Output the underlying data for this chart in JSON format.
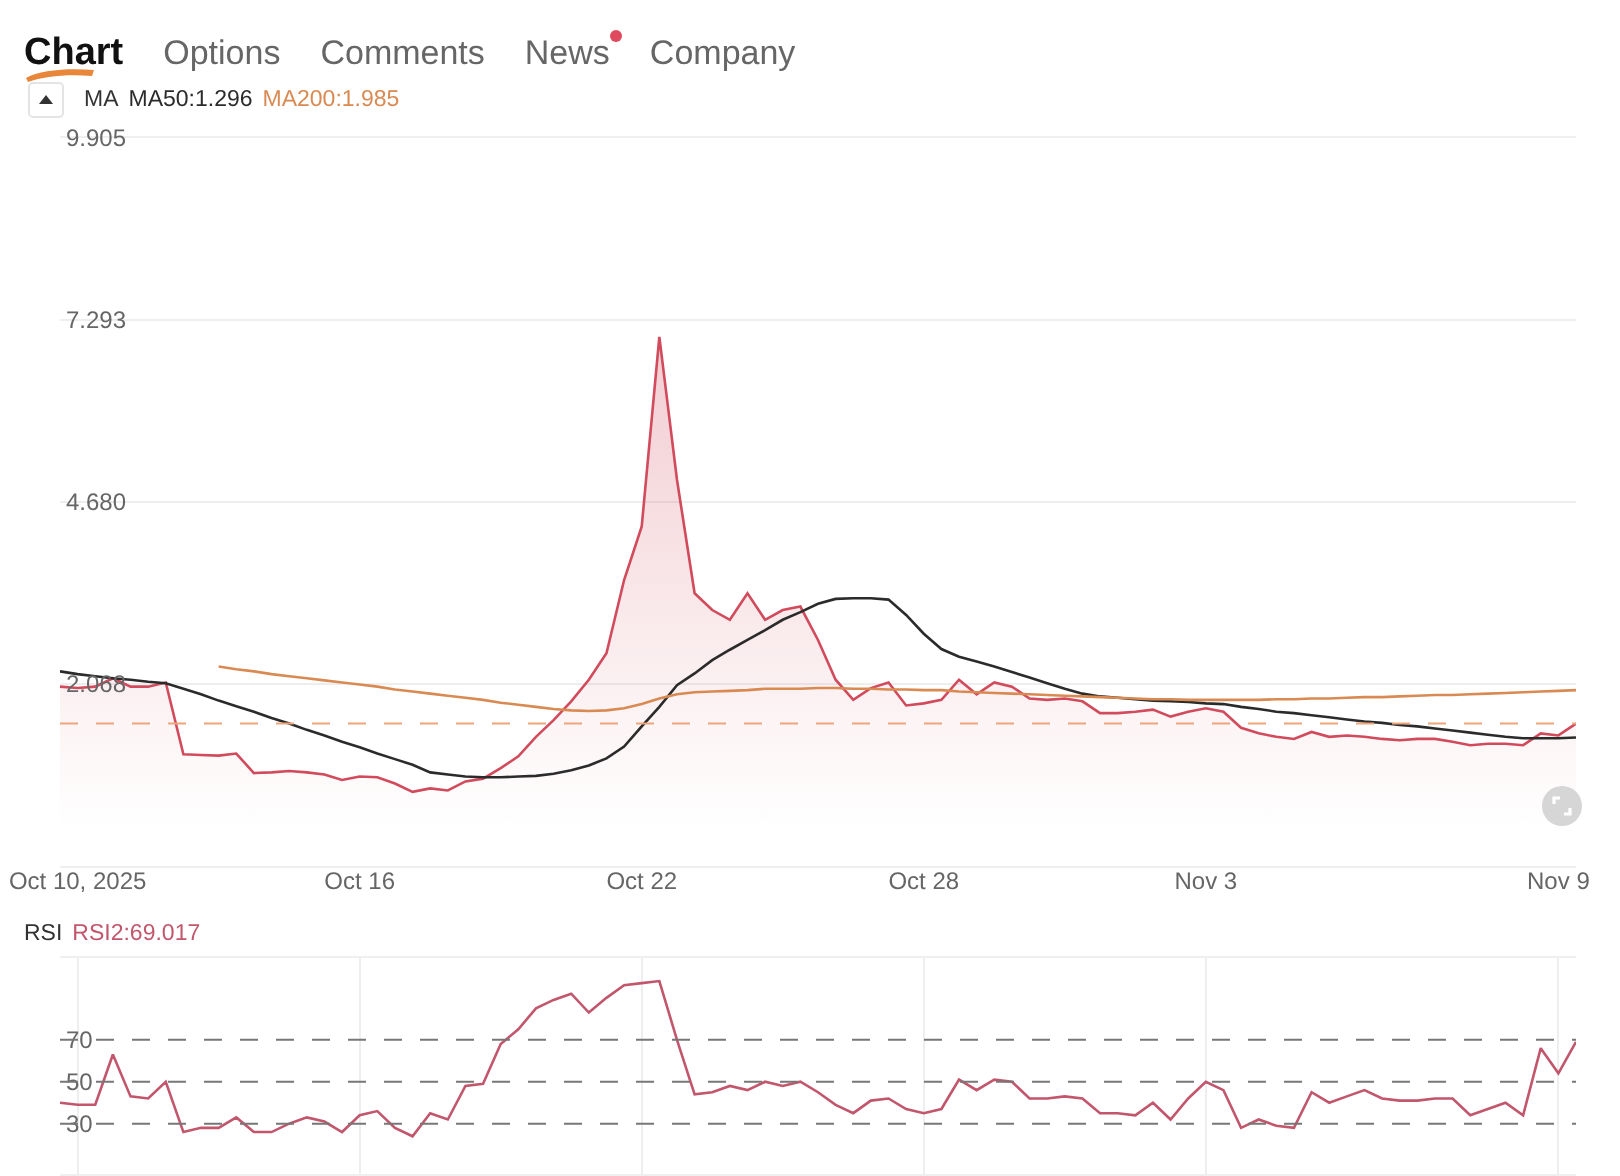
{
  "chart_data": [
    {
      "type": "line",
      "annotations": [
        "Chart",
        "Options",
        "Comments",
        "News",
        "Company"
      ],
      "legend_title": "MA",
      "legend": "top left",
      "categories": [
        null,
        "Oct 10, 2025",
        null,
        null,
        null,
        null,
        null,
        null,
        null,
        null,
        null,
        null,
        null,
        null,
        null,
        null,
        null,
        "Oct 16",
        null,
        null,
        null,
        null,
        null,
        null,
        null,
        null,
        null,
        null,
        null,
        null,
        null,
        null,
        null,
        "Oct 22",
        null,
        null,
        null,
        null,
        null,
        null,
        null,
        null,
        null,
        null,
        null,
        null,
        null,
        null,
        null,
        "Oct 28",
        null,
        null,
        null,
        null,
        null,
        null,
        null,
        null,
        null,
        null,
        null,
        null,
        null,
        null,
        null,
        "Nov 3",
        null,
        null,
        null,
        null,
        null,
        null,
        null,
        null,
        null,
        null,
        null,
        null,
        null,
        null,
        null,
        null,
        null,
        null,
        null,
        "Nov 9",
        null
      ],
      "series": [
        {
          "type": "area",
          "color": "#d14b5c",
          "values": [
            2.03,
            2.01,
            2.03,
            2.15,
            2.03,
            2.03,
            2.09,
            1.06,
            1.05,
            1.04,
            1.07,
            0.79,
            0.8,
            0.82,
            0.8,
            0.77,
            0.69,
            0.74,
            0.73,
            0.64,
            0.52,
            0.57,
            0.54,
            0.67,
            0.71,
            0.86,
            1.03,
            1.31,
            1.55,
            1.82,
            2.13,
            2.51,
            3.56,
            4.33,
            7.05,
            5.0,
            3.37,
            3.13,
            2.99,
            3.37,
            2.99,
            3.13,
            3.18,
            2.7,
            2.13,
            1.84,
            2.01,
            2.09,
            1.76,
            1.79,
            1.84,
            2.13,
            1.92,
            2.09,
            2.03,
            1.86,
            1.84,
            1.86,
            1.82,
            1.65,
            1.65,
            1.67,
            1.7,
            1.6,
            1.67,
            1.72,
            1.67,
            1.44,
            1.36,
            1.31,
            1.28,
            1.38,
            1.31,
            1.33,
            1.31,
            1.28,
            1.26,
            1.28,
            1.28,
            1.24,
            1.19,
            1.21,
            1.21,
            1.19,
            1.36,
            1.33,
            1.5
          ]
        },
        {
          "name": "MA50:1.296",
          "color": "#2b2b2b",
          "values": [
            2.25,
            2.21,
            2.18,
            2.15,
            2.13,
            2.1,
            2.08,
            2.0,
            1.92,
            1.83,
            1.75,
            1.67,
            1.58,
            1.5,
            1.41,
            1.33,
            1.24,
            1.16,
            1.07,
            0.99,
            0.91,
            0.8,
            0.77,
            0.74,
            0.73,
            0.73,
            0.74,
            0.75,
            0.78,
            0.83,
            0.9,
            1.0,
            1.17,
            1.46,
            1.74,
            2.05,
            2.22,
            2.41,
            2.56,
            2.7,
            2.84,
            2.99,
            3.1,
            3.22,
            3.29,
            3.3,
            3.3,
            3.28,
            3.06,
            2.79,
            2.57,
            2.46,
            2.39,
            2.32,
            2.24,
            2.16,
            2.08,
            2.0,
            1.93,
            1.89,
            1.87,
            1.85,
            1.83,
            1.82,
            1.81,
            1.79,
            1.78,
            1.74,
            1.71,
            1.67,
            1.65,
            1.62,
            1.59,
            1.56,
            1.53,
            1.51,
            1.48,
            1.46,
            1.43,
            1.4,
            1.37,
            1.34,
            1.31,
            1.29,
            1.29,
            1.29,
            1.3
          ]
        },
        {
          "name": "MA200:1.985",
          "color": "#d98a52",
          "values": [
            null,
            null,
            null,
            null,
            null,
            null,
            null,
            null,
            null,
            2.32,
            2.28,
            2.25,
            2.21,
            2.18,
            2.15,
            2.12,
            2.09,
            2.06,
            2.03,
            1.99,
            1.96,
            1.93,
            1.9,
            1.87,
            1.84,
            1.8,
            1.77,
            1.74,
            1.71,
            1.69,
            1.68,
            1.69,
            1.72,
            1.78,
            1.86,
            1.92,
            1.95,
            1.96,
            1.97,
            1.98,
            2.0,
            2.0,
            2.0,
            2.01,
            2.01,
            2.0,
            2.0,
            1.99,
            1.99,
            1.98,
            1.98,
            1.96,
            1.95,
            1.94,
            1.93,
            1.92,
            1.91,
            1.9,
            1.89,
            1.88,
            1.87,
            1.86,
            1.85,
            1.85,
            1.84,
            1.84,
            1.84,
            1.84,
            1.84,
            1.85,
            1.85,
            1.86,
            1.86,
            1.87,
            1.88,
            1.88,
            1.89,
            1.9,
            1.91,
            1.91,
            1.92,
            1.93,
            1.94,
            1.95,
            1.96,
            1.97,
            1.98
          ]
        }
      ],
      "ylim": [
        -0.544,
        9.905
      ],
      "yticks": [
        2.068,
        {
          "value": 4.68,
          "label": "4.680"
        },
        7.293,
        9.905
      ],
      "grid": "y",
      "ref_lines": [
        {
          "axis": "y",
          "value": 1.5,
          "color": "#eda57c",
          "line_style": "dashed"
        }
      ]
    },
    {
      "type": "line",
      "legend_title": "RSI",
      "legend": "top left",
      "categories": [
        null,
        null,
        null,
        null,
        null,
        null,
        null,
        null,
        null,
        null,
        null,
        null,
        null,
        null,
        null,
        null,
        null,
        null,
        null,
        null,
        null,
        null,
        null,
        null,
        null,
        null,
        null,
        null,
        null,
        null,
        null,
        null,
        null,
        null,
        null,
        null,
        null,
        null,
        null,
        null,
        null,
        null,
        null,
        null,
        null,
        null,
        null,
        null,
        null,
        null,
        null,
        null,
        null,
        null,
        null,
        null,
        null,
        null,
        null,
        null,
        null,
        null,
        null,
        null,
        null,
        null,
        null,
        null,
        null,
        null,
        null,
        null,
        null,
        null,
        null,
        null,
        null,
        null,
        null,
        null,
        null,
        null,
        null,
        null,
        null,
        null,
        null
      ],
      "series": [
        {
          "name": "RSI2:69.017",
          "color": "#c2566c",
          "values": [
            40,
            39,
            39,
            63,
            43,
            42,
            50,
            26,
            28,
            28,
            33,
            26,
            26,
            30,
            33,
            31,
            26,
            34,
            36,
            28,
            24,
            35,
            32,
            48,
            49,
            68,
            75,
            85,
            89,
            92,
            83,
            90,
            96,
            97,
            98,
            70,
            44,
            45,
            48,
            46,
            50,
            48,
            50,
            45,
            39,
            35,
            41,
            42,
            37,
            35,
            37,
            51,
            46,
            51,
            50,
            42,
            42,
            43,
            42,
            35,
            35,
            34,
            40,
            32,
            42,
            50,
            46,
            28,
            32,
            29,
            28,
            45,
            40,
            43,
            46,
            42,
            41,
            41,
            42,
            42,
            34,
            37,
            40,
            34,
            66,
            54,
            69
          ]
        }
      ],
      "ylim": [
        6,
        109
      ],
      "yticks": [
        30,
        50,
        70
      ],
      "grid": "x",
      "tick_labels": "y",
      "ref_lines": [
        {
          "axis": "y",
          "value": 70,
          "color": "#777777",
          "line_style": "dashed"
        },
        {
          "axis": "y",
          "value": 50,
          "color": "#777777",
          "line_style": "dashed"
        },
        {
          "axis": "y",
          "value": 30,
          "color": "#777777",
          "line_style": "dashed"
        }
      ]
    }
  ]
}
